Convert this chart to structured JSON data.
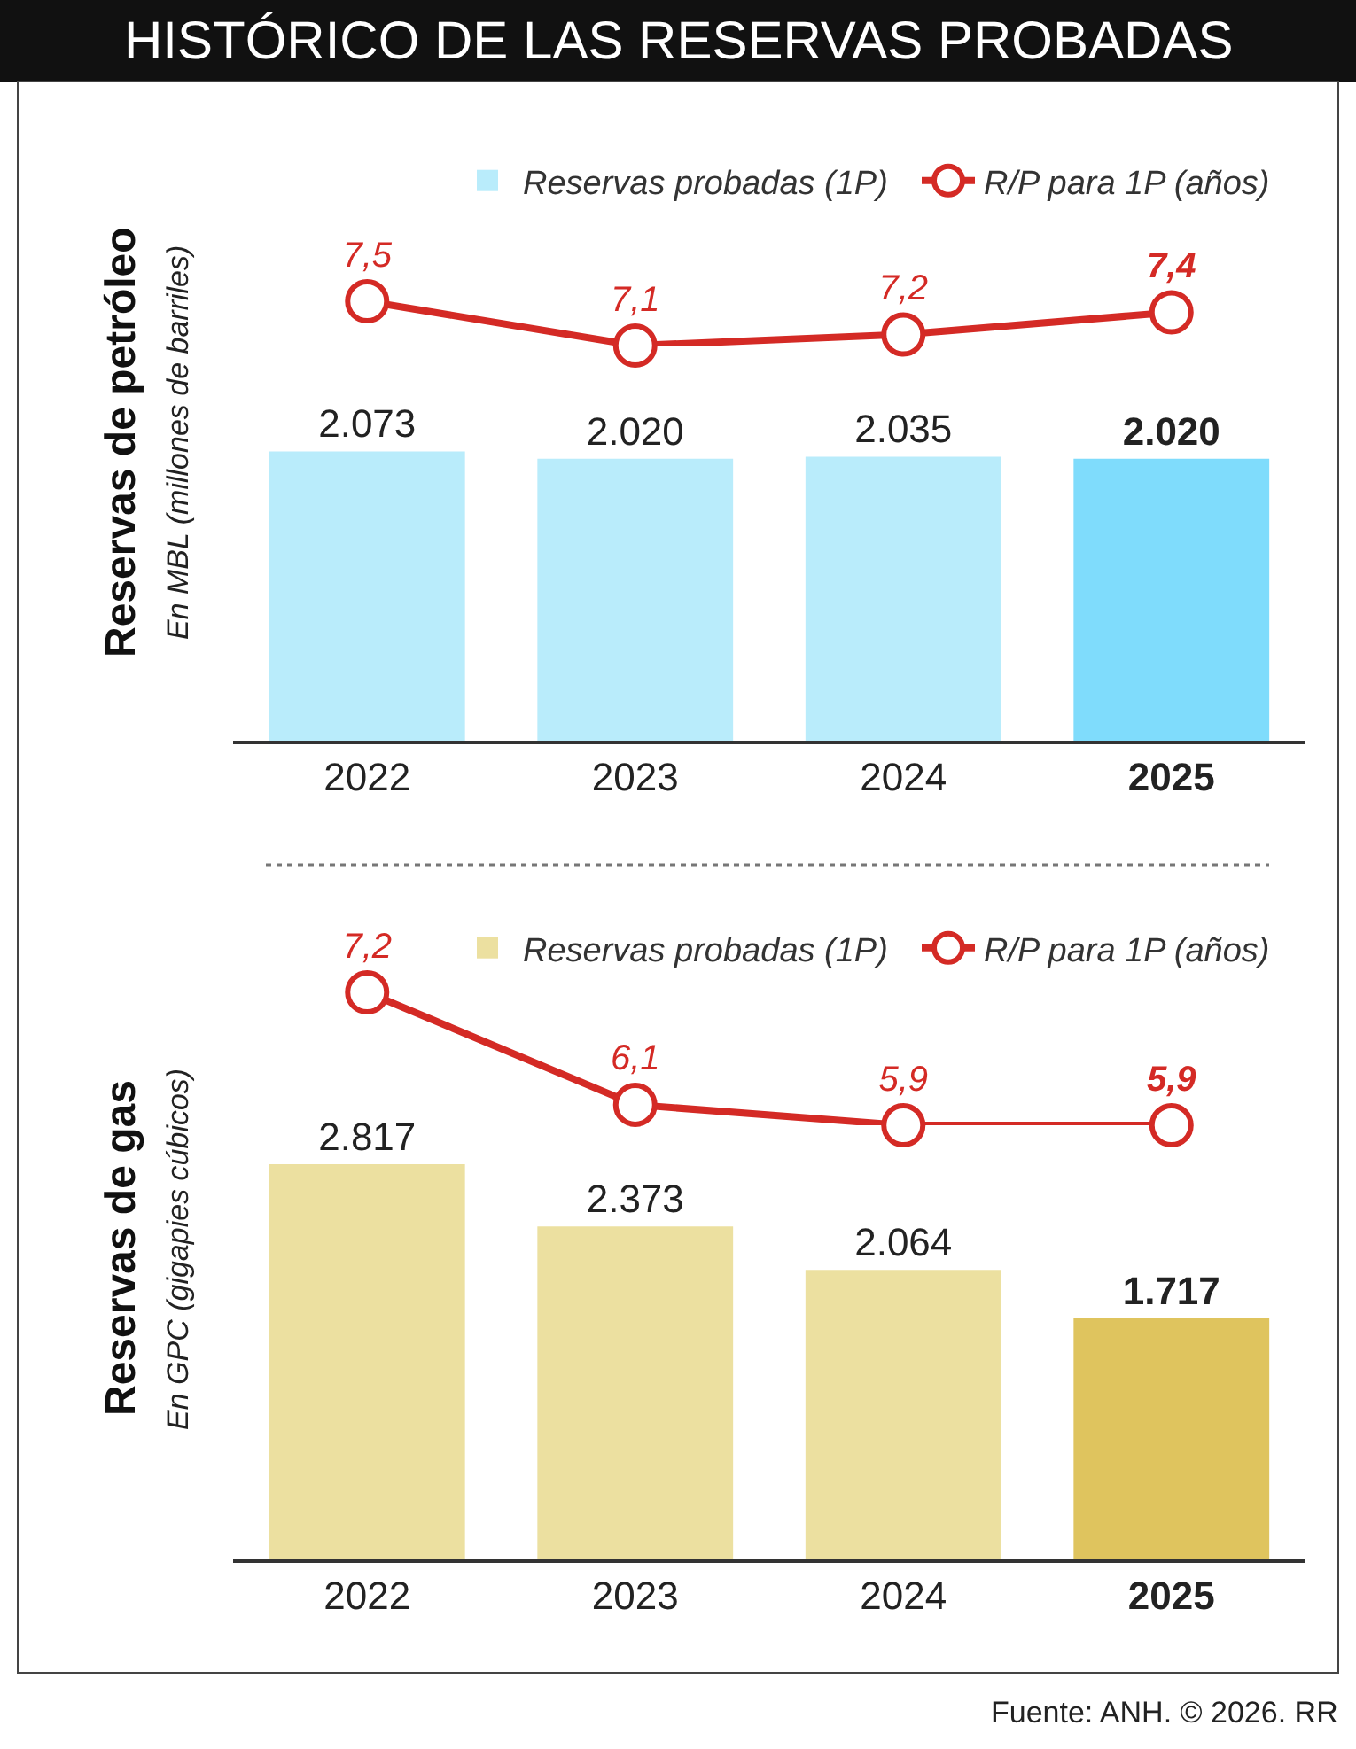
{
  "chart_data": [
    {
      "type": "line",
      "title": "HISTÓRICO DE LAS RESERVAS PROBADAS",
      "categories": [
        "2022",
        "2023",
        "2024",
        "2025"
      ],
      "legend": "top",
      "tick_labels": false,
      "marker": "circle",
      "series": [
        {
          "name": "R/P para 1P (años)",
          "color": "#d42a25",
          "values": [
            7.5,
            7.1,
            7.2,
            7.4
          ],
          "value_labels": [
            "7,5",
            "7,1",
            "7,2",
            "7,4"
          ]
        }
      ]
    },
    {
      "type": "bar",
      "ylabel": "Reservas de petróleo",
      "subtitle": "En MBL (millones de barriles)",
      "categories": [
        "2022",
        "2023",
        "2024",
        "2025"
      ],
      "legend": "top",
      "tick_labels": "x",
      "series": [
        {
          "name": "Reservas probadas (1P)",
          "color": "#7fdcfc",
          "colors": [
            "#b9ecfb",
            "#b9ecfb",
            "#b9ecfb",
            "#7fdcfc"
          ],
          "values": [
            2073,
            2020,
            2035,
            2020
          ],
          "value_labels": [
            "2.073",
            "2.020",
            "2.035",
            "2.020"
          ]
        }
      ]
    },
    {
      "type": "line",
      "categories": [
        "2022",
        "2023",
        "2024",
        "2025"
      ],
      "legend": "top",
      "tick_labels": false,
      "marker": "circle",
      "series": [
        {
          "name": "R/P para 1P (años)",
          "color": "#d42a25",
          "values": [
            7.2,
            6.1,
            5.9,
            5.9
          ],
          "value_labels": [
            "7,2",
            "6,1",
            "5,9",
            "5,9"
          ]
        }
      ]
    },
    {
      "type": "bar",
      "ylabel": "Reservas de gas",
      "subtitle": "En GPC (gigapies cúbicos)",
      "categories": [
        "2022",
        "2023",
        "2024",
        "2025"
      ],
      "legend": "top",
      "tick_labels": "x",
      "annotations": [
        "Fuente: ANH. © 2026. RR"
      ],
      "series": [
        {
          "name": "Reservas probadas (1P)",
          "color": "#dfc45e",
          "colors": [
            "#ece0a0",
            "#ece0a0",
            "#ece0a0",
            "#dfc45e"
          ],
          "values": [
            2817,
            2373,
            2064,
            1717
          ],
          "value_labels": [
            "2.817",
            "2.373",
            "2.064",
            "1.717"
          ]
        }
      ]
    }
  ]
}
